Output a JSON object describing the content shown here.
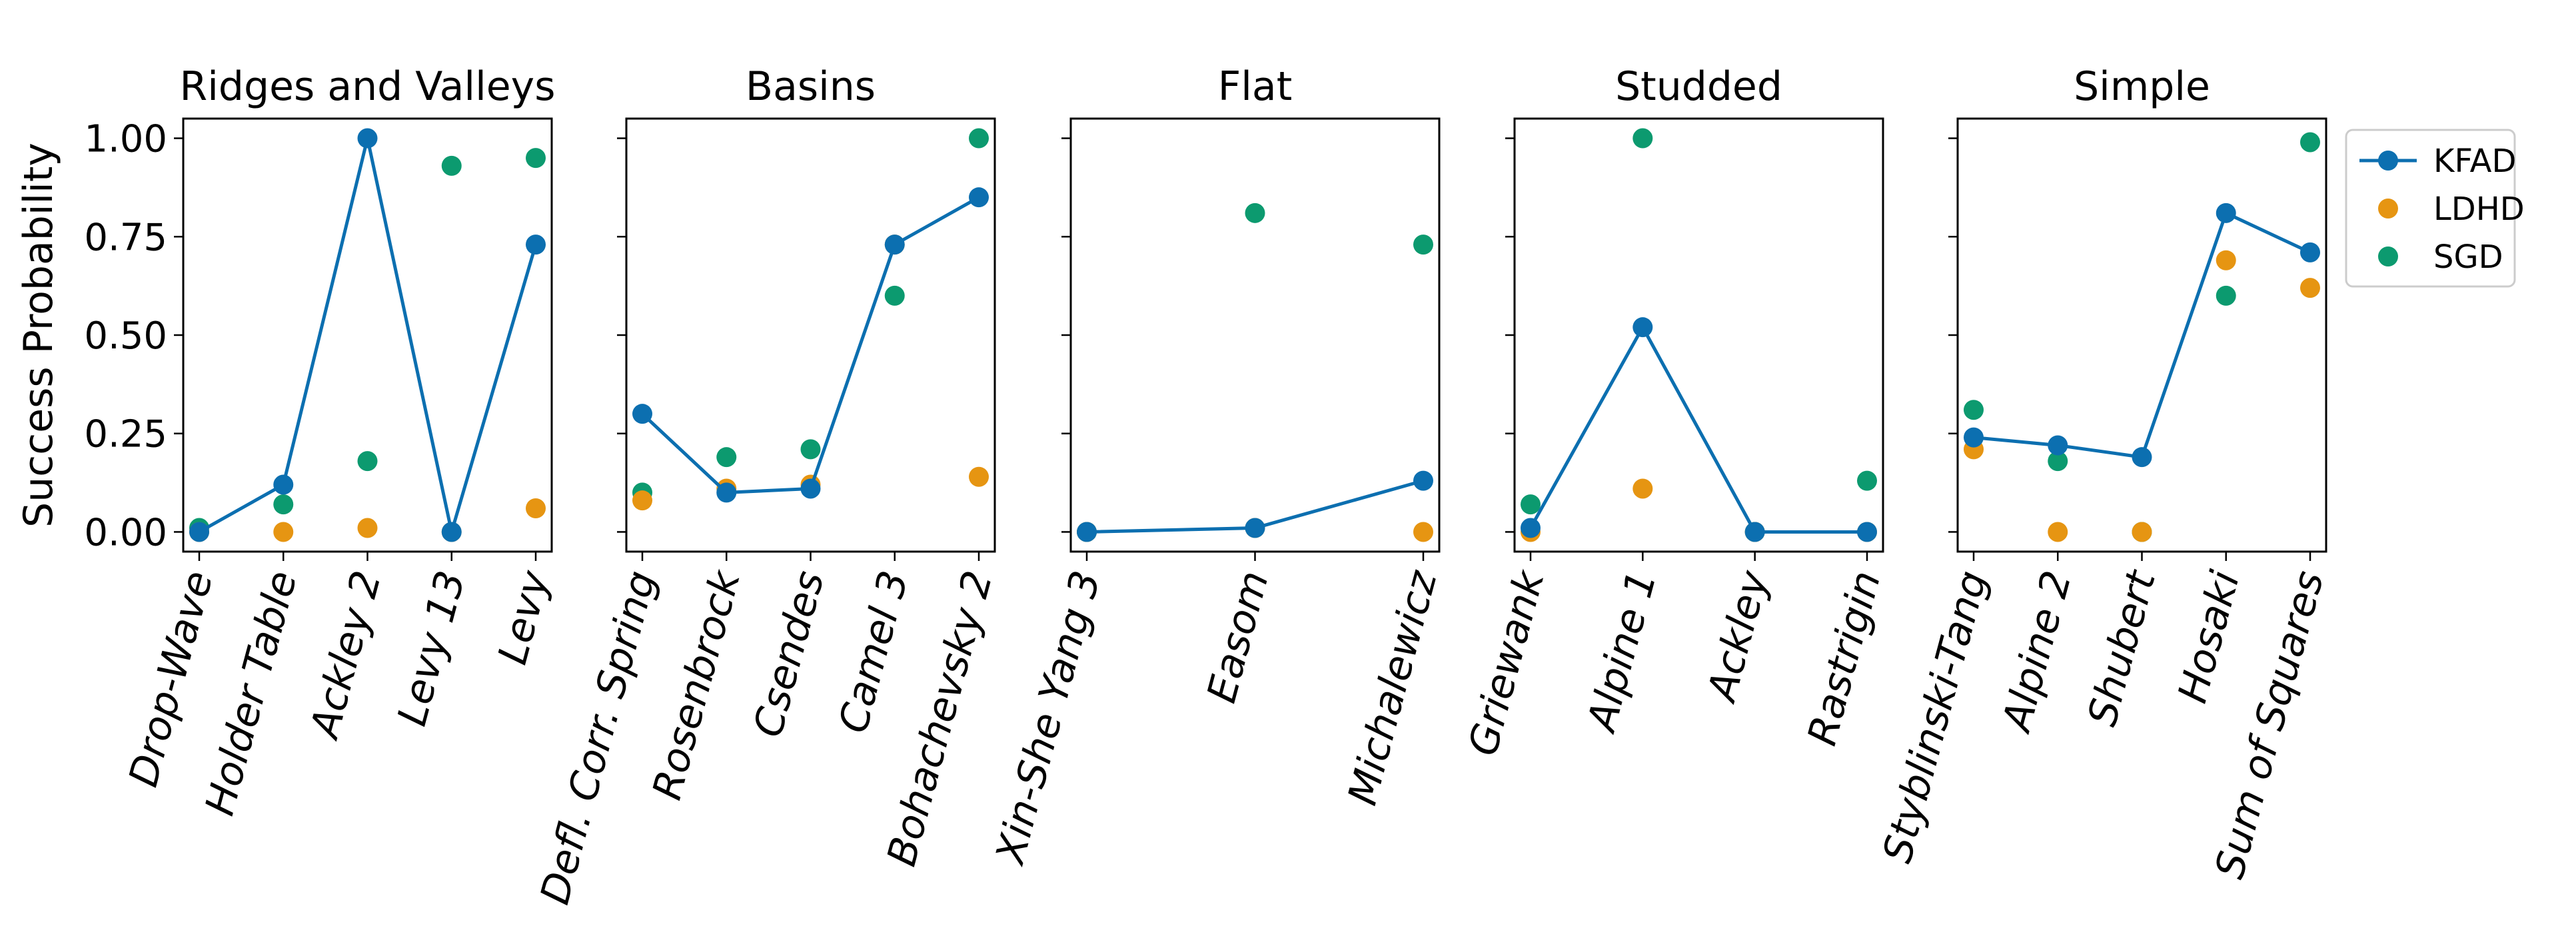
{
  "colors": {
    "KFAD": "#0c6fb0",
    "LDHD": "#e69512",
    "SGD": "#0c9a6f"
  },
  "chart_data": {
    "type": "line",
    "ylabel": "Success Probability",
    "ylim": [
      -0.05,
      1.05
    ],
    "yticks": [
      0.0,
      0.25,
      0.5,
      0.75,
      1.0
    ],
    "ytick_labels": [
      "0.00",
      "0.25",
      "0.50",
      "0.75",
      "1.00"
    ],
    "legend": {
      "placement": "outside-right",
      "entries": [
        {
          "name": "KFAD",
          "style": "line-marker"
        },
        {
          "name": "LDHD",
          "style": "marker"
        },
        {
          "name": "SGD",
          "style": "marker"
        }
      ]
    },
    "panels": [
      {
        "title": "Ridges and Valleys",
        "categories": [
          "Drop-Wave",
          "Holder Table",
          "Ackley 2",
          "Levy 13",
          "Levy"
        ],
        "series": [
          {
            "name": "KFAD",
            "values": [
              0.0,
              0.12,
              1.0,
              0.0,
              0.73
            ]
          },
          {
            "name": "LDHD",
            "values": [
              0.0,
              0.0,
              0.01,
              0.0,
              0.06
            ]
          },
          {
            "name": "SGD",
            "values": [
              0.01,
              0.07,
              0.18,
              0.93,
              0.95
            ]
          }
        ]
      },
      {
        "title": "Basins",
        "categories": [
          "Defl. Corr. Spring",
          "Rosenbrock",
          "Csendes",
          "Camel 3",
          "Bohachevsky 2"
        ],
        "series": [
          {
            "name": "KFAD",
            "values": [
              0.3,
              0.1,
              0.11,
              0.73,
              0.85
            ]
          },
          {
            "name": "LDHD",
            "values": [
              0.08,
              0.11,
              0.12,
              0.73,
              0.14
            ]
          },
          {
            "name": "SGD",
            "values": [
              0.1,
              0.19,
              0.21,
              0.6,
              1.0
            ]
          }
        ]
      },
      {
        "title": "Flat",
        "categories": [
          "Xin-She Yang 3",
          "Easom",
          "Michalewicz"
        ],
        "series": [
          {
            "name": "KFAD",
            "values": [
              0.0,
              0.01,
              0.13
            ]
          },
          {
            "name": "LDHD",
            "values": [
              0.0,
              0.01,
              0.0
            ]
          },
          {
            "name": "SGD",
            "values": [
              0.0,
              0.81,
              0.73
            ]
          }
        ]
      },
      {
        "title": "Studded",
        "categories": [
          "Griewank",
          "Alpine 1",
          "Ackley",
          "Rastrigin"
        ],
        "series": [
          {
            "name": "KFAD",
            "values": [
              0.01,
              0.52,
              0.0,
              0.0
            ]
          },
          {
            "name": "LDHD",
            "values": [
              0.0,
              0.11,
              0.0,
              0.0
            ]
          },
          {
            "name": "SGD",
            "values": [
              0.07,
              1.0,
              0.0,
              0.13
            ]
          }
        ]
      },
      {
        "title": "Simple",
        "categories": [
          "Styblinski-Tang",
          "Alpine 2",
          "Shubert",
          "Hosaki",
          "Sum of Squares"
        ],
        "series": [
          {
            "name": "KFAD",
            "values": [
              0.24,
              0.22,
              0.19,
              0.81,
              0.71
            ]
          },
          {
            "name": "LDHD",
            "values": [
              0.21,
              0.0,
              0.0,
              0.69,
              0.62
            ]
          },
          {
            "name": "SGD",
            "values": [
              0.31,
              0.18,
              0.0,
              0.6,
              0.99
            ]
          }
        ]
      }
    ]
  }
}
